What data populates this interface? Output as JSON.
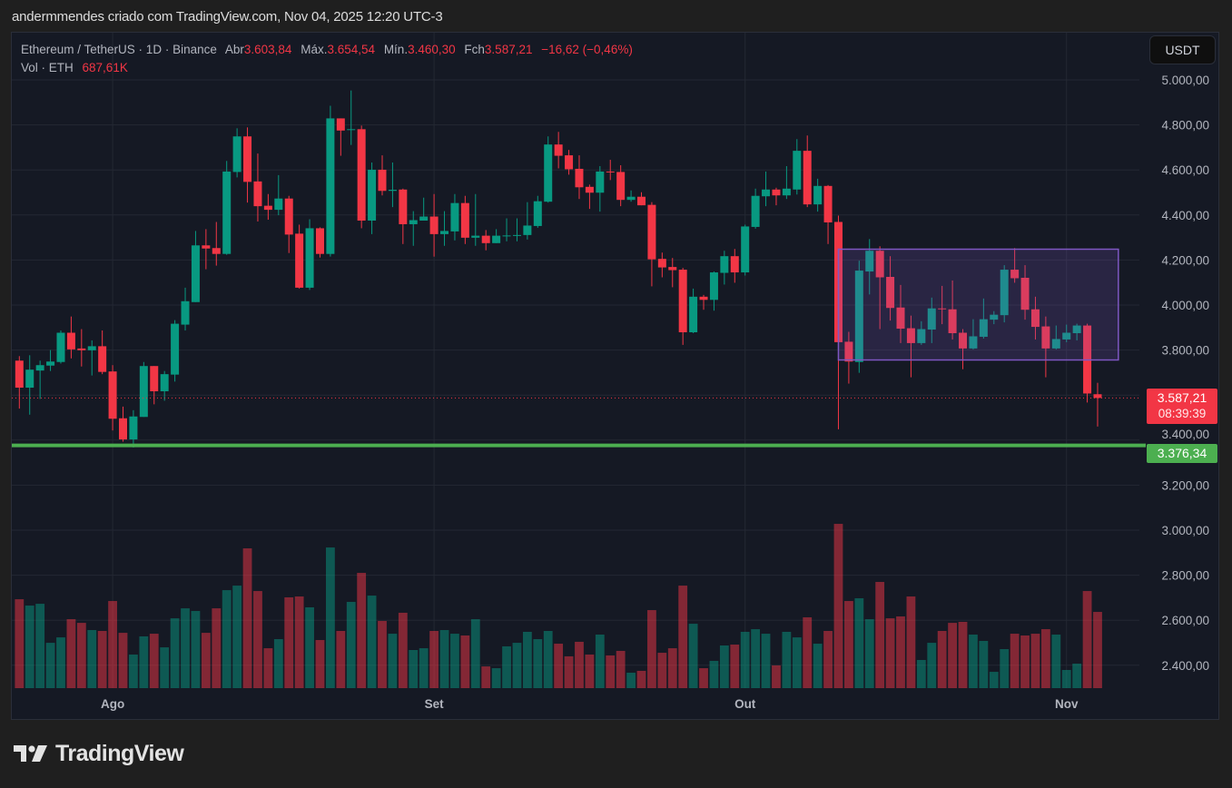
{
  "credit": "andermmendes criado com TradingView.com, Nov 04, 2025 12:20 UTC-3",
  "legend": {
    "symbol": "Ethereum / TetherUS · 1D · Binance",
    "open_label": "Abr",
    "open": "3.603,84",
    "high_label": "Máx.",
    "high": "3.654,54",
    "low_label": "Mín.",
    "low": "3.460,30",
    "close_label": "Fch",
    "close": "3.587,21",
    "change": "−16,62 (−0,46%)",
    "vol_label": "Vol · ETH",
    "vol": "687,61K"
  },
  "currency_button": "USDT",
  "last_price": {
    "value": "3.587,21",
    "countdown": "08:39:39"
  },
  "level_line": {
    "value": "3.376,34"
  },
  "brand": "TradingView",
  "colors": {
    "up": "#089981",
    "down": "#f23645",
    "level_line": "#4caf50",
    "range_box": "#7e57c2",
    "background": "#151924"
  },
  "chart_data": {
    "type": "candlestick",
    "title": "",
    "ylim": [
      2300,
      5050
    ],
    "y_ticks": [
      {
        "v": 5000,
        "label": "5.000,00"
      },
      {
        "v": 4800,
        "label": "4.800,00"
      },
      {
        "v": 4600,
        "label": "4.600,00"
      },
      {
        "v": 4400,
        "label": "4.400,00"
      },
      {
        "v": 4200,
        "label": "4.200,00"
      },
      {
        "v": 4000,
        "label": "4.000,00"
      },
      {
        "v": 3800,
        "label": "3.800,00"
      },
      {
        "v": 3600,
        "label": ""
      },
      {
        "v": 3400,
        "label": "3.400,00"
      },
      {
        "v": 3200,
        "label": "3.200,00"
      },
      {
        "v": 3000,
        "label": "3.000,00"
      },
      {
        "v": 2800,
        "label": "2.800,00"
      },
      {
        "v": 2600,
        "label": "2.600,00"
      },
      {
        "v": 2400,
        "label": "2.400,00"
      }
    ],
    "x_ticks": [
      {
        "date": "2025-08-01",
        "label": "Ago"
      },
      {
        "date": "2025-09-01",
        "label": "Set"
      },
      {
        "date": "2025-10-01",
        "label": "Out"
      },
      {
        "date": "2025-11-01",
        "label": "Nov"
      }
    ],
    "grid": true,
    "last_price": 3587.21,
    "horizontal_line": 3376.34,
    "range_box": {
      "from": "2025-10-10",
      "to": "2025-11-06",
      "top": 4248,
      "bottom": 3756
    },
    "volume_unit": "K ETH",
    "candles_fields": [
      "date",
      "open",
      "high",
      "low",
      "close",
      "volume"
    ],
    "candles": [
      [
        "2025-07-23",
        3753,
        3773,
        3540,
        3633,
        802
      ],
      [
        "2025-07-24",
        3633,
        3777,
        3513,
        3713,
        745
      ],
      [
        "2025-07-25",
        3709,
        3753,
        3583,
        3733,
        761
      ],
      [
        "2025-07-26",
        3731,
        3800,
        3707,
        3749,
        409
      ],
      [
        "2025-07-27",
        3747,
        3887,
        3740,
        3877,
        458
      ],
      [
        "2025-07-28",
        3877,
        3949,
        3763,
        3803,
        622
      ],
      [
        "2025-07-29",
        3807,
        3893,
        3727,
        3799,
        589
      ],
      [
        "2025-07-30",
        3799,
        3843,
        3687,
        3817,
        524
      ],
      [
        "2025-07-31",
        3817,
        3887,
        3693,
        3703,
        516
      ],
      [
        "2025-08-01",
        3705,
        3733,
        3443,
        3495,
        786
      ],
      [
        "2025-08-02",
        3497,
        3549,
        3393,
        3403,
        499
      ],
      [
        "2025-08-03",
        3403,
        3533,
        3367,
        3505,
        303
      ],
      [
        "2025-08-04",
        3503,
        3747,
        3503,
        3729,
        467
      ],
      [
        "2025-08-05",
        3729,
        3729,
        3559,
        3617,
        491
      ],
      [
        "2025-08-06",
        3617,
        3707,
        3575,
        3693,
        368
      ],
      [
        "2025-08-07",
        3691,
        3933,
        3660,
        3917,
        630
      ],
      [
        "2025-08-08",
        3913,
        4077,
        3887,
        4017,
        720
      ],
      [
        "2025-08-09",
        4013,
        4329,
        4013,
        4265,
        696
      ],
      [
        "2025-08-10",
        4265,
        4337,
        4159,
        4251,
        499
      ],
      [
        "2025-08-11",
        4253,
        4369,
        4175,
        4227,
        720
      ],
      [
        "2025-08-12",
        4227,
        4640,
        4223,
        4593,
        884
      ],
      [
        "2025-08-13",
        4591,
        4785,
        4567,
        4749,
        925
      ],
      [
        "2025-08-14",
        4749,
        4789,
        4455,
        4547,
        1261
      ],
      [
        "2025-08-15",
        4549,
        4673,
        4371,
        4439,
        876
      ],
      [
        "2025-08-16",
        4441,
        4493,
        4379,
        4423,
        360
      ],
      [
        "2025-08-17",
        4423,
        4577,
        4399,
        4473,
        442
      ],
      [
        "2025-08-18",
        4473,
        4485,
        4231,
        4313,
        819
      ],
      [
        "2025-08-19",
        4317,
        4357,
        4073,
        4077,
        827
      ],
      [
        "2025-08-20",
        4077,
        4381,
        4067,
        4341,
        729
      ],
      [
        "2025-08-21",
        4341,
        4345,
        4211,
        4227,
        434
      ],
      [
        "2025-08-22",
        4227,
        4885,
        4215,
        4829,
        1269
      ],
      [
        "2025-08-23",
        4829,
        4829,
        4663,
        4775,
        516
      ],
      [
        "2025-08-24",
        4779,
        4953,
        4711,
        4781,
        778
      ],
      [
        "2025-08-25",
        4781,
        4797,
        4341,
        4375,
        1040
      ],
      [
        "2025-08-26",
        4375,
        4633,
        4315,
        4601,
        835
      ],
      [
        "2025-08-27",
        4601,
        4665,
        4487,
        4507,
        606
      ],
      [
        "2025-08-28",
        4507,
        4633,
        4435,
        4512,
        491
      ],
      [
        "2025-08-29",
        4513,
        4517,
        4271,
        4359,
        680
      ],
      [
        "2025-08-30",
        4359,
        4417,
        4263,
        4377,
        344
      ],
      [
        "2025-08-31",
        4375,
        4477,
        4375,
        4393,
        360
      ],
      [
        "2025-09-01",
        4393,
        4493,
        4215,
        4315,
        516
      ],
      [
        "2025-09-02",
        4315,
        4417,
        4263,
        4329,
        524
      ],
      [
        "2025-09-03",
        4327,
        4493,
        4287,
        4453,
        491
      ],
      [
        "2025-09-04",
        4453,
        4485,
        4271,
        4299,
        475
      ],
      [
        "2025-09-05",
        4299,
        4493,
        4263,
        4308,
        622
      ],
      [
        "2025-09-06",
        4308,
        4333,
        4243,
        4275,
        196
      ],
      [
        "2025-09-07",
        4275,
        4337,
        4275,
        4308,
        180
      ],
      [
        "2025-09-08",
        4308,
        4385,
        4283,
        4309,
        377
      ],
      [
        "2025-09-09",
        4309,
        4385,
        4283,
        4311,
        409
      ],
      [
        "2025-09-10",
        4311,
        4457,
        4291,
        4353,
        508
      ],
      [
        "2025-09-11",
        4351,
        4485,
        4343,
        4461,
        442
      ],
      [
        "2025-09-12",
        4459,
        4749,
        4455,
        4713,
        516
      ],
      [
        "2025-09-13",
        4713,
        4769,
        4607,
        4663,
        401
      ],
      [
        "2025-09-14",
        4665,
        4689,
        4579,
        4603,
        287
      ],
      [
        "2025-09-15",
        4605,
        4665,
        4471,
        4523,
        418
      ],
      [
        "2025-09-16",
        4525,
        4535,
        4427,
        4499,
        303
      ],
      [
        "2025-09-17",
        4499,
        4617,
        4415,
        4593,
        483
      ],
      [
        "2025-09-18",
        4593,
        4645,
        4555,
        4591,
        295
      ],
      [
        "2025-09-19",
        4591,
        4621,
        4439,
        4467,
        336
      ],
      [
        "2025-09-20",
        4467,
        4509,
        4459,
        4481,
        139
      ],
      [
        "2025-09-21",
        4481,
        4501,
        4443,
        4443,
        156
      ],
      [
        "2025-09-22",
        4445,
        4457,
        4083,
        4203,
        704
      ],
      [
        "2025-09-23",
        4205,
        4233,
        4123,
        4167,
        319
      ],
      [
        "2025-09-24",
        4169,
        4209,
        4079,
        4155,
        360
      ],
      [
        "2025-09-25",
        4157,
        4165,
        3823,
        3879,
        925
      ],
      [
        "2025-09-26",
        3879,
        4073,
        3875,
        4037,
        581
      ],
      [
        "2025-09-27",
        4037,
        4045,
        3979,
        4023,
        180
      ],
      [
        "2025-09-28",
        4023,
        4149,
        3975,
        4145,
        246
      ],
      [
        "2025-09-29",
        4143,
        4241,
        4091,
        4217,
        385
      ],
      [
        "2025-09-30",
        4217,
        4249,
        4099,
        4145,
        393
      ],
      [
        "2025-10-01",
        4145,
        4357,
        4131,
        4349,
        508
      ],
      [
        "2025-10-02",
        4347,
        4517,
        4339,
        4485,
        532
      ],
      [
        "2025-10-03",
        4483,
        4593,
        4439,
        4513,
        491
      ],
      [
        "2025-10-04",
        4513,
        4521,
        4443,
        4487,
        205
      ],
      [
        "2025-10-05",
        4487,
        4617,
        4471,
        4517,
        508
      ],
      [
        "2025-10-06",
        4513,
        4737,
        4491,
        4685,
        458
      ],
      [
        "2025-10-07",
        4685,
        4753,
        4435,
        4447,
        639
      ],
      [
        "2025-10-08",
        4447,
        4561,
        4415,
        4529,
        401
      ],
      [
        "2025-10-09",
        4529,
        4533,
        4271,
        4367,
        516
      ],
      [
        "2025-10-10",
        4369,
        4397,
        3448,
        3835,
        1482
      ],
      [
        "2025-10-11",
        3837,
        3881,
        3651,
        3749,
        786
      ],
      [
        "2025-10-12",
        3747,
        4197,
        3699,
        4153,
        811
      ],
      [
        "2025-10-13",
        4149,
        4293,
        4047,
        4241,
        622
      ],
      [
        "2025-10-14",
        4241,
        4261,
        3893,
        4123,
        958
      ],
      [
        "2025-10-15",
        4125,
        4217,
        3931,
        3987,
        630
      ],
      [
        "2025-10-16",
        3989,
        4089,
        3831,
        3895,
        647
      ],
      [
        "2025-10-17",
        3897,
        3953,
        3679,
        3831,
        827
      ],
      [
        "2025-10-18",
        3831,
        3928,
        3823,
        3893,
        254
      ],
      [
        "2025-10-19",
        3891,
        4033,
        3831,
        3985,
        409
      ],
      [
        "2025-10-20",
        3985,
        4085,
        3915,
        3983,
        516
      ],
      [
        "2025-10-21",
        3981,
        4109,
        3847,
        3875,
        589
      ],
      [
        "2025-10-22",
        3877,
        3893,
        3715,
        3807,
        598
      ],
      [
        "2025-10-23",
        3807,
        3937,
        3803,
        3861,
        483
      ],
      [
        "2025-10-24",
        3859,
        4029,
        3851,
        3937,
        426
      ],
      [
        "2025-10-25",
        3935,
        3973,
        3915,
        3957,
        147
      ],
      [
        "2025-10-26",
        3955,
        4177,
        3923,
        4157,
        352
      ],
      [
        "2025-10-27",
        4157,
        4253,
        4099,
        4119,
        491
      ],
      [
        "2025-10-28",
        4121,
        4177,
        3935,
        3979,
        475
      ],
      [
        "2025-10-29",
        3981,
        4037,
        3847,
        3903,
        491
      ],
      [
        "2025-10-30",
        3905,
        3949,
        3679,
        3807,
        532
      ],
      [
        "2025-10-31",
        3807,
        3909,
        3803,
        3849,
        483
      ],
      [
        "2025-11-01",
        3847,
        3913,
        3835,
        3877,
        164
      ],
      [
        "2025-11-02",
        3875,
        3917,
        3843,
        3909,
        221
      ],
      [
        "2025-11-03",
        3909,
        3917,
        3567,
        3607,
        876
      ],
      [
        "2025-11-04",
        3603.84,
        3654.54,
        3460.3,
        3587.21,
        687.61
      ]
    ]
  }
}
